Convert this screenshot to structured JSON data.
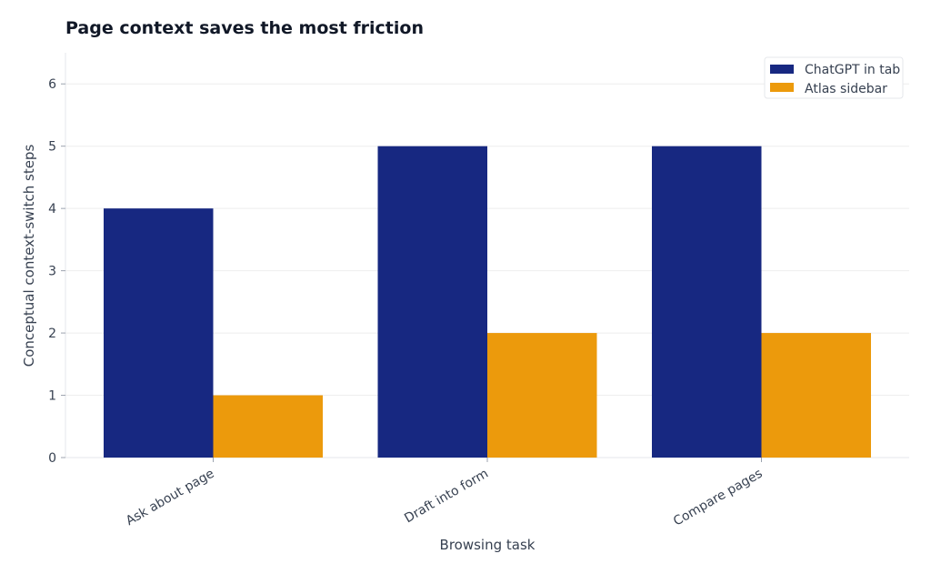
{
  "chart_data": {
    "type": "bar",
    "title": "Page context saves the most friction",
    "xlabel": "Browsing task",
    "ylabel": "Conceptual context-switch steps",
    "categories": [
      "Ask about page",
      "Draft into form",
      "Compare pages"
    ],
    "series": [
      {
        "name": "ChatGPT in tab",
        "values": [
          4,
          5,
          5
        ],
        "color": "#172881"
      },
      {
        "name": "Atlas sidebar",
        "values": [
          1,
          2,
          2
        ],
        "color": "#ec9a0c"
      }
    ],
    "ylim": [
      0,
      6.5
    ],
    "yticks": [
      0,
      1,
      2,
      3,
      4,
      5,
      6
    ],
    "grid": true,
    "legend_position": "top-right"
  }
}
